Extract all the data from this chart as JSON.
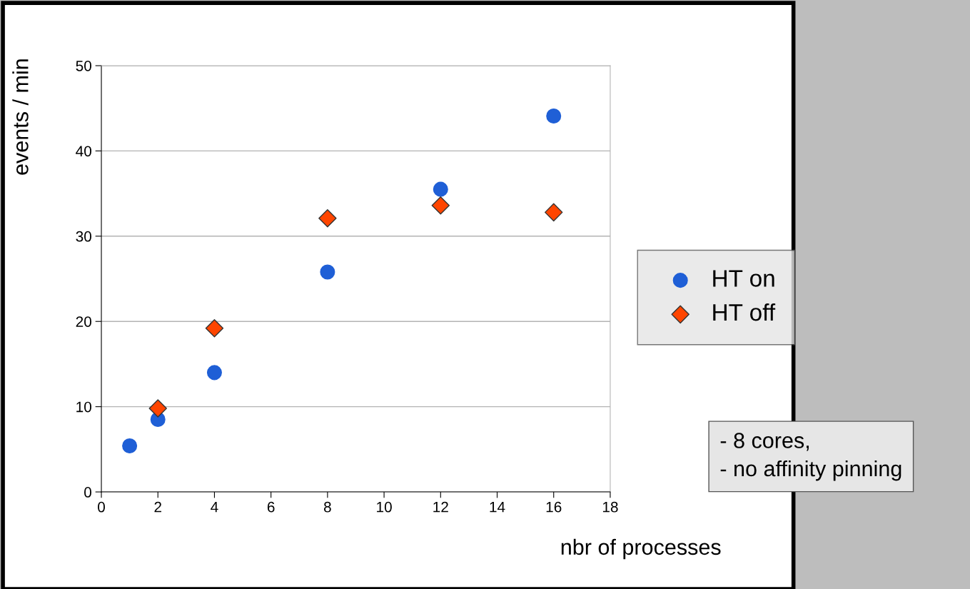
{
  "chart_data": {
    "type": "scatter",
    "xlabel": "nbr of processes",
    "ylabel": "events / min",
    "x": [
      1,
      2,
      4,
      8,
      12,
      16
    ],
    "series": [
      {
        "name": "HT on",
        "color": "#1f5fd6",
        "marker": "circle",
        "values": [
          5.4,
          8.5,
          14.0,
          25.8,
          35.5,
          44.1
        ]
      },
      {
        "name": "HT off",
        "color": "#ff4500",
        "marker": "diamond",
        "values": [
          null,
          9.8,
          19.2,
          32.1,
          33.6,
          32.8
        ]
      }
    ],
    "xlim": [
      0,
      18
    ],
    "xticks": [
      0,
      2,
      4,
      6,
      8,
      10,
      12,
      14,
      16,
      18
    ],
    "ylim": [
      0,
      50
    ],
    "yticks": [
      0,
      10,
      20,
      30,
      40,
      50
    ],
    "grid": "y",
    "legend": "right",
    "annotations": [
      "- 8 cores,\n- no affinity pinning"
    ]
  }
}
